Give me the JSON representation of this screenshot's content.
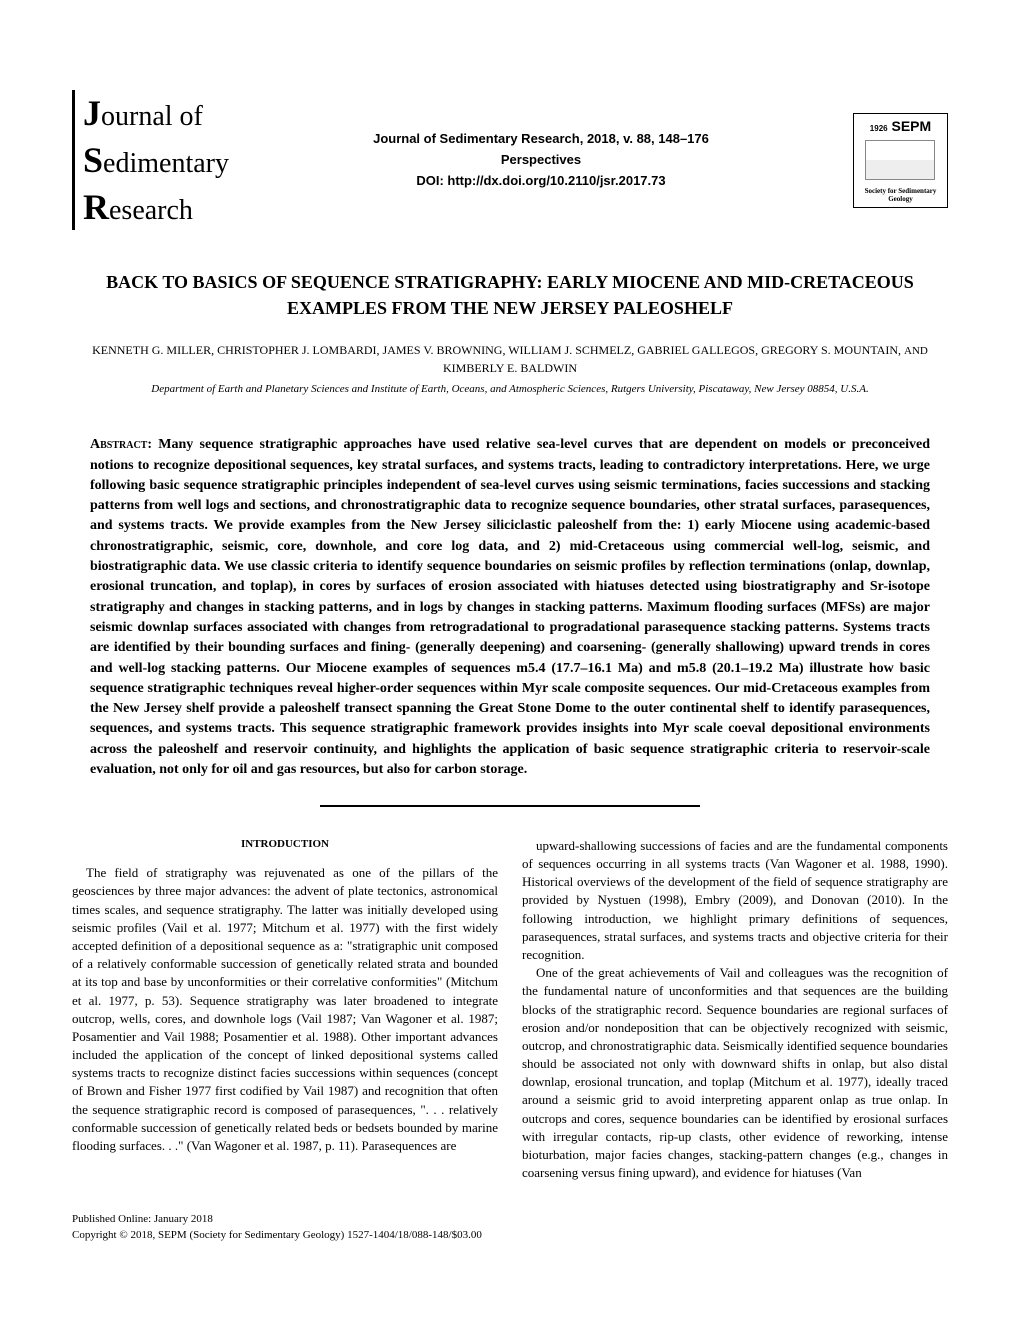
{
  "header": {
    "logo_line1": "Journal of",
    "logo_line2": "Sedimentary",
    "logo_line3": "Research",
    "journal_line": "Journal of Sedimentary Research, 2018, v. 88, 148–176",
    "section": "Perspectives",
    "doi_label": "DOI: http://dx.doi.org/10.2110/jsr.2017.73",
    "sepm_year": "1926",
    "sepm_label": "SEPM",
    "sepm_sub": "Society for Sedimentary Geology"
  },
  "article": {
    "title": "BACK TO BASICS OF SEQUENCE STRATIGRAPHY: EARLY MIOCENE AND MID-CRETACEOUS EXAMPLES FROM THE NEW JERSEY PALEOSHELF",
    "authors": "KENNETH G. MILLER, CHRISTOPHER J. LOMBARDI, JAMES V. BROWNING, WILLIAM J. SCHMELZ, GABRIEL GALLEGOS, GREGORY S. MOUNTAIN, ",
    "authors_and": "AND",
    "authors_last": " KIMBERLY E. BALDWIN",
    "affiliation": "Department of Earth and Planetary Sciences and Institute of Earth, Oceans, and Atmospheric Sciences, Rutgers University, Piscataway, New Jersey 08854, U.S.A."
  },
  "abstract": {
    "label": "Abstract:",
    "text": " Many sequence stratigraphic approaches have used relative sea-level curves that are dependent on models or preconceived notions to recognize depositional sequences, key stratal surfaces, and systems tracts, leading to contradictory interpretations. Here, we urge following basic sequence stratigraphic principles independent of sea-level curves using seismic terminations, facies successions and stacking patterns from well logs and sections, and chronostratigraphic data to recognize sequence boundaries, other stratal surfaces, parasequences, and systems tracts. We provide examples from the New Jersey siliciclastic paleoshelf from the: 1) early Miocene using academic-based chronostratigraphic, seismic, core, downhole, and core log data, and 2) mid-Cretaceous using commercial well-log, seismic, and biostratigraphic data. We use classic criteria to identify sequence boundaries on seismic profiles by reflection terminations (onlap, downlap, erosional truncation, and toplap), in cores by surfaces of erosion associated with hiatuses detected using biostratigraphy and Sr-isotope stratigraphy and changes in stacking patterns, and in logs by changes in stacking patterns. Maximum flooding surfaces (MFSs) are major seismic downlap surfaces associated with changes from retrogradational to progradational parasequence stacking patterns. Systems tracts are identified by their bounding surfaces and fining- (generally deepening) and coarsening- (generally shallowing) upward trends in cores and well-log stacking patterns. Our Miocene examples of sequences m5.4 (17.7–16.1 Ma) and m5.8 (20.1–19.2 Ma) illustrate how basic sequence stratigraphic techniques reveal higher-order sequences within Myr scale composite sequences. Our mid-Cretaceous examples from the New Jersey shelf provide a paleoshelf transect spanning the Great Stone Dome to the outer continental shelf to identify parasequences, sequences, and systems tracts. This sequence stratigraphic framework provides insights into Myr scale coeval depositional environments across the paleoshelf and reservoir continuity, and highlights the application of basic sequence stratigraphic criteria to reservoir-scale evaluation, not only for oil and gas resources, but also for carbon storage."
  },
  "body": {
    "intro_heading": "INTRODUCTION",
    "col1_p1": "The field of stratigraphy was rejuvenated as one of the pillars of the geosciences by three major advances: the advent of plate tectonics, astronomical times scales, and sequence stratigraphy. The latter was initially developed using seismic profiles (Vail et al. 1977; Mitchum et al. 1977) with the first widely accepted definition of a depositional sequence as a: \"stratigraphic unit composed of a relatively conformable succession of genetically related strata and bounded at its top and base by unconformities or their correlative conformities\" (Mitchum et al. 1977, p. 53). Sequence stratigraphy was later broadened to integrate outcrop, wells, cores, and downhole logs (Vail 1987; Van Wagoner et al. 1987; Posamentier and Vail 1988; Posamentier et al. 1988). Other important advances included the application of the concept of linked depositional systems called systems tracts to recognize distinct facies successions within sequences (concept of Brown and Fisher 1977 first codified by Vail 1987) and recognition that often the sequence stratigraphic record is composed of parasequences, \". . . relatively conformable succession of genetically related beds or bedsets bounded by marine flooding surfaces. . .\" (Van Wagoner et al. 1987, p. 11). Parasequences are",
    "col2_p1": "upward-shallowing successions of facies and are the fundamental components of sequences occurring in all systems tracts (Van Wagoner et al. 1988, 1990). Historical overviews of the development of the field of sequence stratigraphy are provided by Nystuen (1998), Embry (2009), and Donovan (2010). In the following introduction, we highlight primary definitions of sequences, parasequences, stratal surfaces, and systems tracts and objective criteria for their recognition.",
    "col2_p2": "One of the great achievements of Vail and colleagues was the recognition of the fundamental nature of unconformities and that sequences are the building blocks of the stratigraphic record. Sequence boundaries are regional surfaces of erosion and/or nondeposition that can be objectively recognized with seismic, outcrop, and chronostratigraphic data. Seismically identified sequence boundaries should be associated not only with downward shifts in onlap, but also distal downlap, erosional truncation, and toplap (Mitchum et al. 1977), ideally traced around a seismic grid to avoid interpreting apparent onlap as true onlap. In outcrops and cores, sequence boundaries can be identified by erosional surfaces with irregular contacts, rip-up clasts, other evidence of reworking, intense bioturbation, major facies changes, stacking-pattern changes (e.g., changes in coarsening versus fining upward), and evidence for hiatuses (Van"
  },
  "footer": {
    "published": "Published Online: January 2018",
    "copyright": "Copyright © 2018, SEPM (Society for Sedimentary Geology)   1527-1404/18/088-148/$03.00"
  }
}
